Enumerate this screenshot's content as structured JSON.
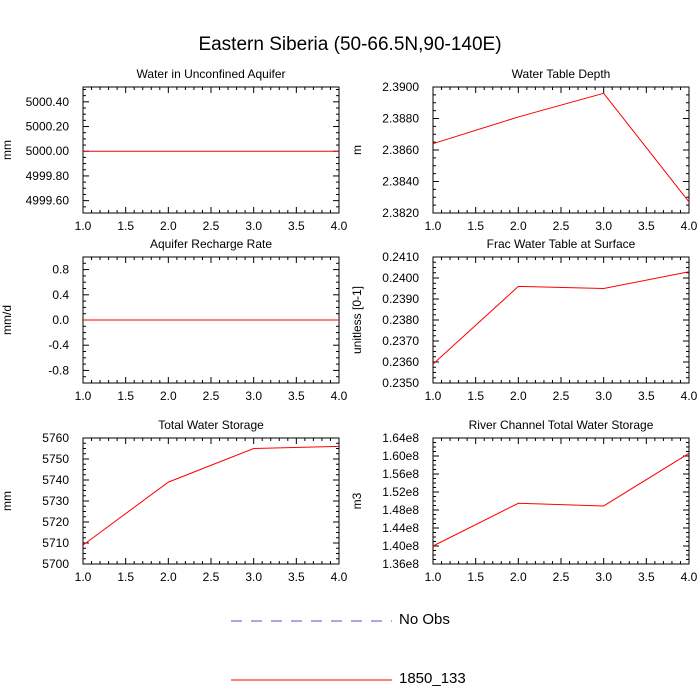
{
  "page_title": "Eastern Siberia (50-66.5N,90-140E)",
  "legend": [
    {
      "label": "No Obs",
      "color": "#5050c8",
      "style": "dashed"
    },
    {
      "label": "1850_133",
      "color": "#ff0000",
      "style": "solid"
    }
  ],
  "chart_data": [
    {
      "type": "line",
      "title": "Water in Unconfined Aquifer",
      "ylabel": "mm",
      "x": [
        1.0,
        2.0,
        3.0,
        4.0
      ],
      "xlim": [
        1.0,
        4.0
      ],
      "xticks": [
        "1.0",
        "1.5",
        "2.0",
        "2.5",
        "3.0",
        "3.5",
        "4.0"
      ],
      "ylim": [
        4999.5,
        5000.52
      ],
      "yticks": [
        4999.6,
        4999.8,
        5000.0,
        5000.2,
        5000.4
      ],
      "ytick_labels": [
        "4999.60",
        "4999.80",
        "5000.00",
        "5000.20",
        "5000.40"
      ],
      "series": [
        {
          "name": "1850_133",
          "values": [
            5000.0,
            5000.0,
            5000.0,
            5000.0
          ]
        }
      ]
    },
    {
      "type": "line",
      "title": "Water Table Depth",
      "ylabel": "m",
      "x": [
        1.0,
        2.0,
        3.0,
        4.0
      ],
      "xlim": [
        1.0,
        4.0
      ],
      "xticks": [
        "1.0",
        "1.5",
        "2.0",
        "2.5",
        "3.0",
        "3.5",
        "4.0"
      ],
      "ylim": [
        2.382,
        2.39
      ],
      "yticks": [
        2.382,
        2.384,
        2.386,
        2.388,
        2.39
      ],
      "ytick_labels": [
        "2.3820",
        "2.3840",
        "2.3860",
        "2.3880",
        "2.3900"
      ],
      "series": [
        {
          "name": "1850_133",
          "values": [
            2.3864,
            2.3881,
            2.3896,
            2.3827
          ]
        }
      ]
    },
    {
      "type": "line",
      "title": "Aquifer Recharge Rate",
      "ylabel": "mm/d",
      "x": [
        1.0,
        2.0,
        3.0,
        4.0
      ],
      "xlim": [
        1.0,
        4.0
      ],
      "xticks": [
        "1.0",
        "1.5",
        "2.0",
        "2.5",
        "3.0",
        "3.5",
        "4.0"
      ],
      "ylim": [
        -1.0,
        1.0
      ],
      "yticks": [
        -0.8,
        -0.4,
        0.0,
        0.4,
        0.8
      ],
      "ytick_labels": [
        "-0.8",
        "-0.4",
        "0.0",
        "0.4",
        "0.8"
      ],
      "series": [
        {
          "name": "1850_133",
          "values": [
            0.0,
            0.0,
            0.0,
            0.0
          ]
        }
      ]
    },
    {
      "type": "line",
      "title": "Frac Water Table at Surface",
      "ylabel": "unitless [0-1]",
      "x": [
        1.0,
        2.0,
        3.0,
        4.0
      ],
      "xlim": [
        1.0,
        4.0
      ],
      "xticks": [
        "1.0",
        "1.5",
        "2.0",
        "2.5",
        "3.0",
        "3.5",
        "4.0"
      ],
      "ylim": [
        0.235,
        0.241
      ],
      "yticks": [
        0.235,
        0.236,
        0.237,
        0.238,
        0.239,
        0.24,
        0.241
      ],
      "ytick_labels": [
        "0.2350",
        "0.2360",
        "0.2370",
        "0.2380",
        "0.2390",
        "0.2400",
        "0.2410"
      ],
      "series": [
        {
          "name": "1850_133",
          "values": [
            0.2359,
            0.2396,
            0.2395,
            0.2403
          ]
        }
      ]
    },
    {
      "type": "line",
      "title": "Total Water Storage",
      "ylabel": "mm",
      "x": [
        1.0,
        2.0,
        3.0,
        4.0
      ],
      "xlim": [
        1.0,
        4.0
      ],
      "xticks": [
        "1.0",
        "1.5",
        "2.0",
        "2.5",
        "3.0",
        "3.5",
        "4.0"
      ],
      "ylim": [
        5700,
        5760
      ],
      "yticks": [
        5700,
        5710,
        5720,
        5730,
        5740,
        5750,
        5760
      ],
      "ytick_labels": [
        "5700",
        "5710",
        "5720",
        "5730",
        "5740",
        "5750",
        "5760"
      ],
      "series": [
        {
          "name": "1850_133",
          "values": [
            5709,
            5739,
            5755,
            5756
          ]
        }
      ]
    },
    {
      "type": "line",
      "title": "River Channel Total Water Storage",
      "ylabel": "m3",
      "x": [
        1.0,
        2.0,
        3.0,
        4.0
      ],
      "xlim": [
        1.0,
        4.0
      ],
      "xticks": [
        "1.0",
        "1.5",
        "2.0",
        "2.5",
        "3.0",
        "3.5",
        "4.0"
      ],
      "ylim": [
        136000000,
        164000000
      ],
      "yticks": [
        136000000,
        140000000,
        144000000,
        148000000,
        152000000,
        156000000,
        160000000,
        164000000
      ],
      "ytick_labels": [
        "1.36e8",
        "1.40e8",
        "1.44e8",
        "1.48e8",
        "1.52e8",
        "1.56e8",
        "1.60e8",
        "1.64e8"
      ],
      "series": [
        {
          "name": "1850_133",
          "values": [
            140000000,
            149500000,
            148900000,
            160600000
          ]
        }
      ]
    }
  ]
}
